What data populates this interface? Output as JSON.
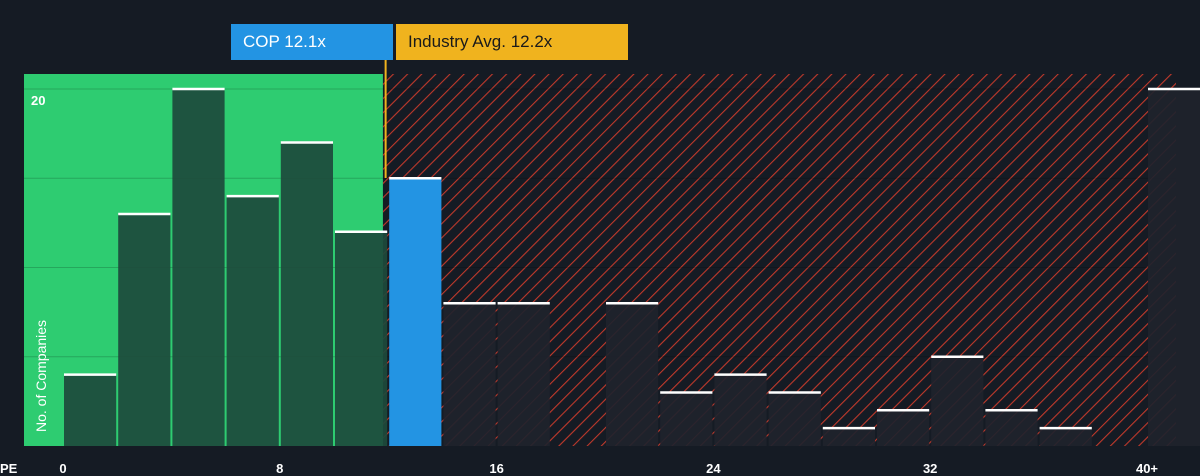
{
  "labels": {
    "company_callout": "COP 12.1x",
    "industry_callout": "Industry Avg. 12.2x"
  },
  "colors": {
    "background": "#151b24",
    "undervalued_zone": "#2ecc71",
    "overvalued_hatch": "#c0392b",
    "company_bar": "#2394e3",
    "industry_marker": "#f0b31e",
    "bar_fill": "#1d4a3c",
    "bar_fill_right": "#1f232d"
  },
  "chart_data": {
    "type": "bar",
    "title": "",
    "xlabel": "PE",
    "ylabel": "No. of Companies",
    "x_ticks": [
      {
        "value": 0,
        "label": "0"
      },
      {
        "value": 8,
        "label": "8"
      },
      {
        "value": 16,
        "label": "16"
      },
      {
        "value": 24,
        "label": "24"
      },
      {
        "value": 32,
        "label": "32"
      },
      {
        "value": 40,
        "label": "40+"
      }
    ],
    "y_ticks": [
      {
        "value": 20,
        "label": "20"
      }
    ],
    "ylim": [
      0,
      20
    ],
    "grid": true,
    "company_pe": 12.1,
    "industry_avg_pe": 12.2,
    "bins": [
      {
        "x0": 0,
        "x1": 2,
        "count": 4
      },
      {
        "x0": 2,
        "x1": 4,
        "count": 13
      },
      {
        "x0": 4,
        "x1": 6,
        "count": 20
      },
      {
        "x0": 6,
        "x1": 8,
        "count": 14
      },
      {
        "x0": 8,
        "x1": 10,
        "count": 17
      },
      {
        "x0": 10,
        "x1": 12,
        "count": 12
      },
      {
        "x0": 12,
        "x1": 14,
        "count": 15,
        "company": true
      },
      {
        "x0": 14,
        "x1": 16,
        "count": 8
      },
      {
        "x0": 16,
        "x1": 18,
        "count": 8
      },
      {
        "x0": 18,
        "x1": 20,
        "count": 0
      },
      {
        "x0": 20,
        "x1": 22,
        "count": 8
      },
      {
        "x0": 22,
        "x1": 24,
        "count": 3
      },
      {
        "x0": 24,
        "x1": 26,
        "count": 4
      },
      {
        "x0": 26,
        "x1": 28,
        "count": 3
      },
      {
        "x0": 28,
        "x1": 30,
        "count": 1
      },
      {
        "x0": 30,
        "x1": 32,
        "count": 2
      },
      {
        "x0": 32,
        "x1": 34,
        "count": 5
      },
      {
        "x0": 34,
        "x1": 36,
        "count": 2
      },
      {
        "x0": 36,
        "x1": 38,
        "count": 1
      },
      {
        "x0": 38,
        "x1": 40,
        "count": 0
      },
      {
        "x0": 40,
        "x1": 42,
        "count": 20,
        "label": "40+"
      }
    ]
  }
}
